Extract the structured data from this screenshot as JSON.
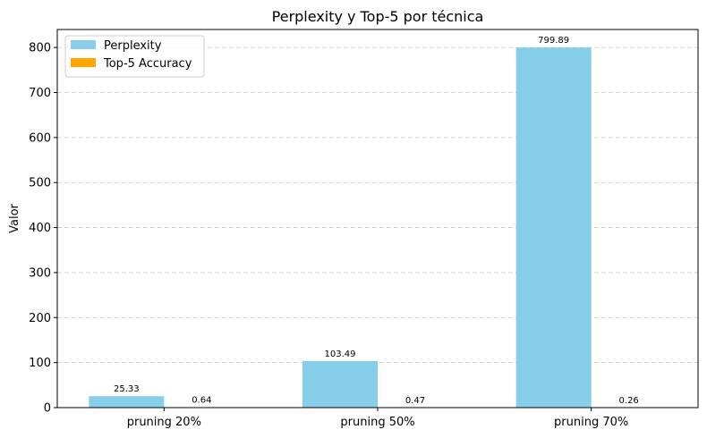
{
  "chart_data": {
    "type": "bar",
    "title": "Perplexity y Top-5 por técnica",
    "xlabel": "",
    "ylabel": "Valor",
    "categories": [
      "pruning 20%",
      "pruning 50%",
      "pruning 70%"
    ],
    "series": [
      {
        "name": "Perplexity",
        "values": [
          25.33,
          103.49,
          799.89
        ],
        "labels": [
          "25.33",
          "103.49",
          "799.89"
        ],
        "color": "#87ceeb"
      },
      {
        "name": "Top-5 Accuracy",
        "values": [
          0.64,
          0.47,
          0.26
        ],
        "labels": [
          "0.64",
          "0.47",
          "0.26"
        ],
        "color": "#ffa500"
      }
    ],
    "ylim": [
      0,
      840
    ],
    "yticks": [
      0,
      100,
      200,
      300,
      400,
      500,
      600,
      700,
      800
    ],
    "grid": true,
    "legend_position": "top-left"
  }
}
